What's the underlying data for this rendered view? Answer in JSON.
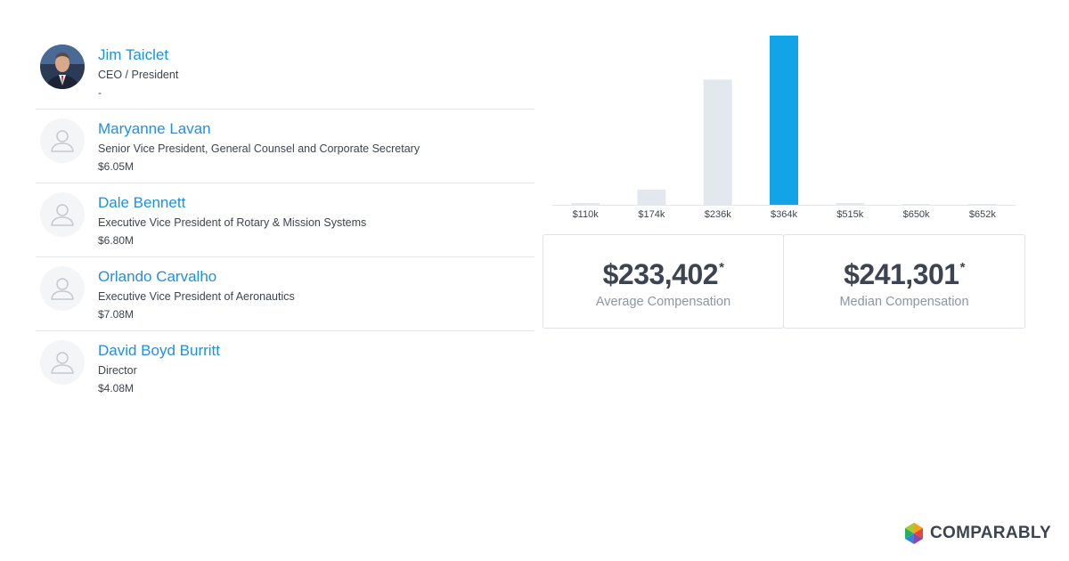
{
  "executives": [
    {
      "name": "Jim Taiclet",
      "title": "CEO / President",
      "compensation": "-",
      "has_photo": true
    },
    {
      "name": "Maryanne Lavan",
      "title": "Senior Vice President, General Counsel and Corporate Secretary",
      "compensation": "$6.05M",
      "has_photo": false
    },
    {
      "name": "Dale Bennett",
      "title": "Executive Vice President of Rotary & Mission Systems",
      "compensation": "$6.80M",
      "has_photo": false
    },
    {
      "name": "Orlando Carvalho",
      "title": "Executive Vice President of Aeronautics",
      "compensation": "$7.08M",
      "has_photo": false
    },
    {
      "name": "David Boyd Burritt",
      "title": "Director",
      "compensation": "$4.08M",
      "has_photo": false
    }
  ],
  "chart_data": {
    "type": "bar",
    "title": "",
    "xlabel": "",
    "ylabel": "",
    "categories": [
      "$110k",
      "$174k",
      "$236k",
      "$364k",
      "$515k",
      "$650k",
      "$652k"
    ],
    "values": [
      1,
      9,
      74,
      100,
      1,
      0.5,
      0.5
    ],
    "highlight_index": 3,
    "ylim": [
      0,
      100
    ],
    "colors": {
      "default": "#e3e8ee",
      "highlight": "#13a3e8"
    }
  },
  "stats": {
    "average": {
      "value": "$233,402",
      "marker": "*",
      "label": "Average Compensation"
    },
    "median": {
      "value": "$241,301",
      "marker": "*",
      "label": "Median Compensation"
    }
  },
  "brand": {
    "name": "COMPARABLY"
  },
  "colors": {
    "link": "#1f8fe6",
    "text": "#3d4451",
    "muted": "#8d96a3",
    "divider": "#e3e6ea"
  }
}
